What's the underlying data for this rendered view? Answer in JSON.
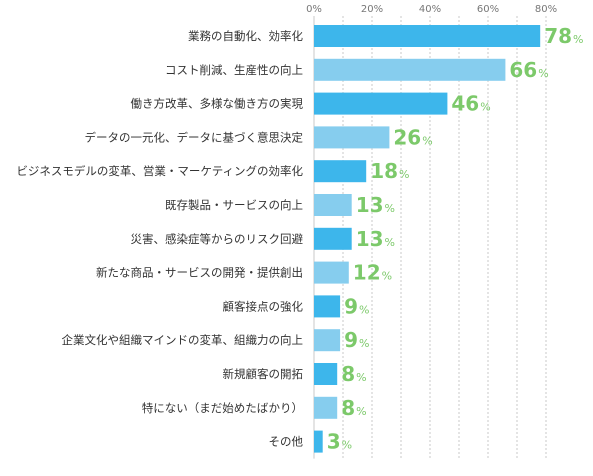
{
  "chart_data": {
    "type": "bar",
    "orientation": "horizontal",
    "categories": [
      "業務の自動化、効率化",
      "コスト削減、生産性の向上",
      "働き方改革、多様な働き方の実現",
      "データの一元化、データに基づく意思決定",
      "ビジネスモデルの変革、営業・マーケティングの効率化",
      "既存製品・サービスの向上",
      "災害、感染症等からのリスク回避",
      "新たな商品・サービスの開発・提供創出",
      "顧客接点の強化",
      "企業文化や組織マインドの変革、組織力の向上",
      "新規顧客の開拓",
      "特にない（まだ始めたばかり）",
      "その他"
    ],
    "values": [
      78,
      66,
      46,
      26,
      18,
      13,
      13,
      12,
      9,
      9,
      8,
      8,
      3
    ],
    "value_suffix": "%",
    "x_ticks": [
      "0%",
      "20%",
      "40%",
      "60%",
      "80%"
    ],
    "xlim": [
      0,
      80
    ],
    "grid": true,
    "bar_colors": [
      "#3db6eb",
      "#86cdee"
    ],
    "label_color": "#7cc96a"
  }
}
